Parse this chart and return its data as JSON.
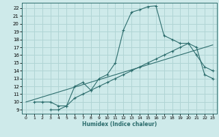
{
  "xlabel": "Humidex (Indice chaleur)",
  "ylabel": "",
  "bg_color": "#ceeaea",
  "grid_color": "#b0d4d4",
  "line_color": "#2a6b6b",
  "xlim": [
    -0.5,
    23.5
  ],
  "ylim": [
    8.5,
    22.7
  ],
  "xticks": [
    0,
    1,
    2,
    3,
    4,
    5,
    6,
    7,
    8,
    9,
    10,
    11,
    12,
    13,
    14,
    15,
    16,
    17,
    18,
    19,
    20,
    21,
    22,
    23
  ],
  "yticks": [
    9,
    10,
    11,
    12,
    13,
    14,
    15,
    16,
    17,
    18,
    19,
    20,
    21,
    22
  ],
  "curve1_x": [
    1,
    2,
    3,
    4,
    5,
    6,
    7,
    8,
    9,
    10,
    11,
    12,
    13,
    14,
    15,
    16,
    17,
    18,
    19,
    20,
    21,
    22,
    23
  ],
  "curve1_y": [
    10,
    10,
    10,
    9.5,
    9.5,
    12,
    12.5,
    11.5,
    13,
    13.5,
    15,
    19.2,
    21.5,
    21.8,
    22.2,
    22.3,
    18.5,
    18,
    17.5,
    17.5,
    16,
    14.5,
    14
  ],
  "curve2_x": [
    3,
    4,
    5,
    6,
    7,
    8,
    9,
    10,
    11,
    12,
    13,
    14,
    15,
    16,
    17,
    18,
    19,
    20,
    21,
    22,
    23
  ],
  "curve2_y": [
    9,
    9,
    9.5,
    10.5,
    11,
    11.5,
    12,
    12.5,
    13,
    13.5,
    14,
    14.5,
    15,
    15.5,
    16,
    16.5,
    17,
    17.5,
    17,
    13.5,
    13
  ],
  "curve3_x": [
    0,
    23
  ],
  "curve3_y": [
    10,
    17.3
  ]
}
